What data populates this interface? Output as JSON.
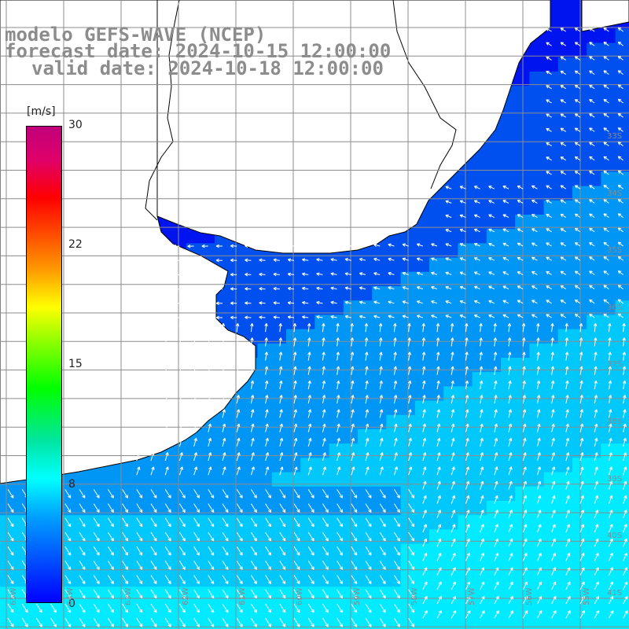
{
  "titles": {
    "line1": "modelo GEFS-WAVE (NCEP)",
    "line2": "forecast date: 2024-10-15 12:00:00",
    "line3": "valid date: 2024-10-18 12:00:00"
  },
  "colorbar": {
    "unit": "[m/s]",
    "ticks": [
      "30",
      "22",
      "15",
      "8",
      "0"
    ],
    "colors": [
      "#0000ff",
      "#00a0ff",
      "#00ffff",
      "#00ff00",
      "#ffff00",
      "#ff9900",
      "#ff0000",
      "#c0007a"
    ]
  },
  "map": {
    "land_color": "#ffffff",
    "grid_color": "#8c8c8c",
    "arrow_color": "#ffffff",
    "ocean_colors": [
      "#0014f0",
      "#0050f0",
      "#0096f5",
      "#00c8fa",
      "#00ebff"
    ],
    "right_labels": [
      "33S",
      "34S",
      "35S",
      "36S",
      "37S",
      "38S",
      "39S",
      "40S",
      "41S"
    ],
    "bottom_labels": [
      "65W",
      "64W",
      "63W",
      "62W",
      "61W",
      "60W",
      "59W",
      "58W",
      "57W",
      "56W",
      "55W"
    ]
  }
}
